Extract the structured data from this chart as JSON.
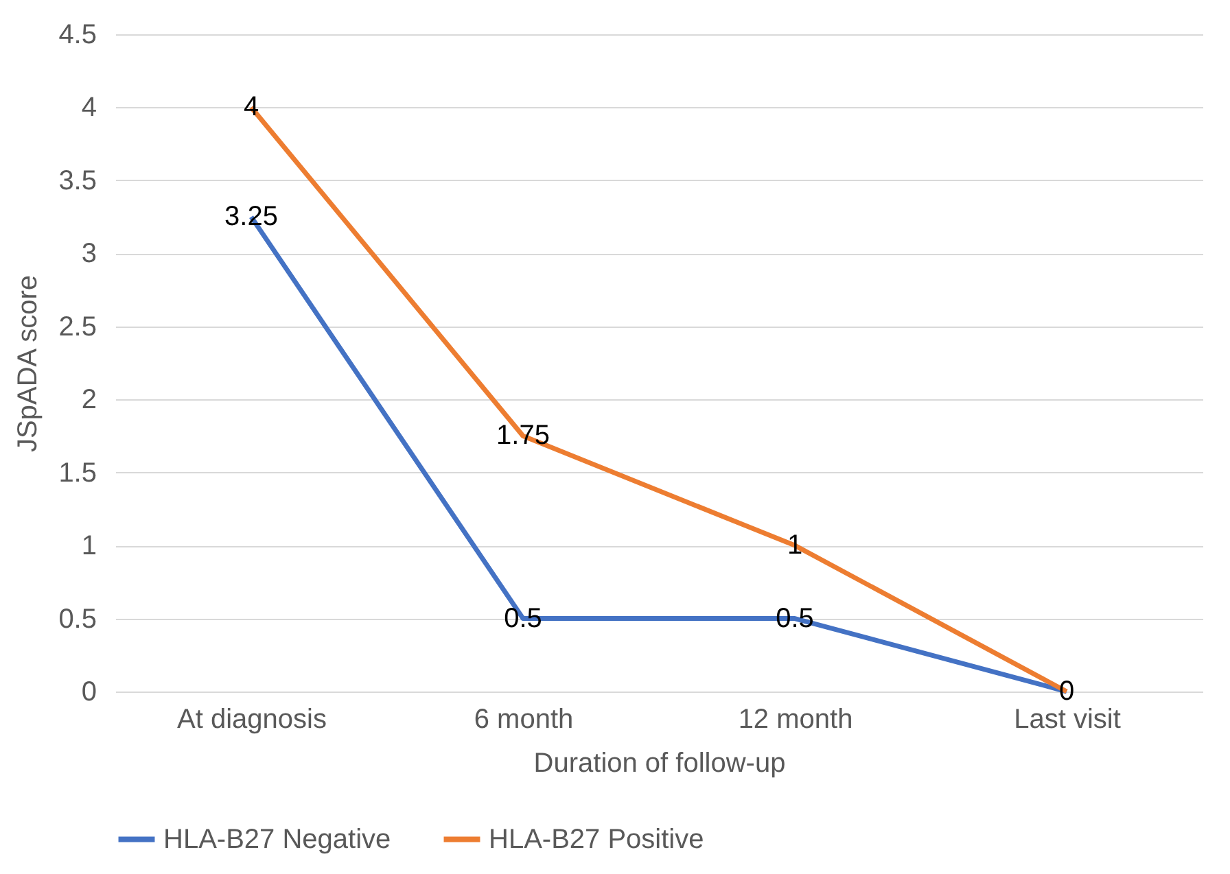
{
  "chart_data": {
    "type": "line",
    "xlabel": "Duration of follow-up",
    "ylabel": "JSpADA score",
    "categories": [
      "At diagnosis",
      "6 month",
      "12 month",
      "Last visit"
    ],
    "series": [
      {
        "name": "HLA-B27 Negative",
        "color": "#4472c4",
        "values": [
          3.25,
          0.5,
          0.5,
          0
        ],
        "value_labels": [
          "3.25",
          "0.5",
          "0.5",
          null
        ]
      },
      {
        "name": "HLA-B27 Positive",
        "color": "#ed7d31",
        "values": [
          4,
          1.75,
          1,
          0
        ],
        "value_labels": [
          "4",
          "1.75",
          "1",
          "0"
        ]
      }
    ],
    "ylim": [
      0,
      4.5
    ],
    "yticks": [
      0,
      0.5,
      1,
      1.5,
      2,
      2.5,
      3,
      3.5,
      4,
      4.5
    ],
    "grid": "y",
    "legend": "bottom",
    "marker": "none",
    "line_style": "solid"
  }
}
